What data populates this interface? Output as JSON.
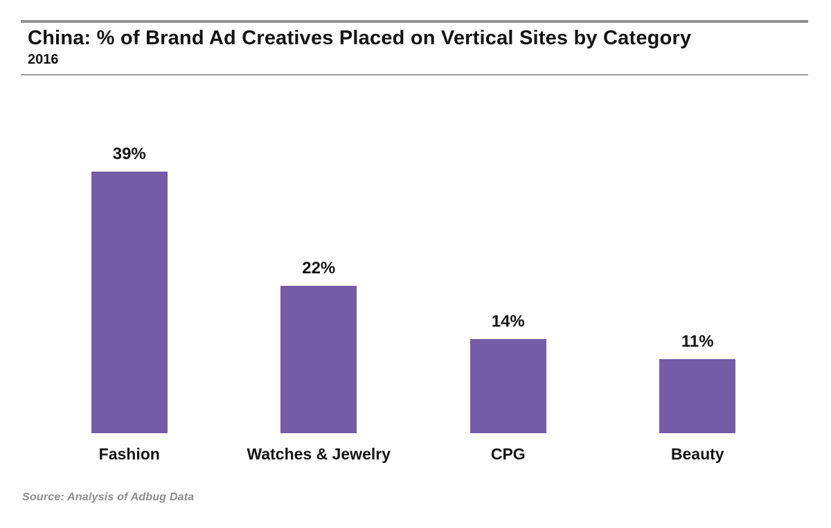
{
  "header": {
    "title": "China: % of Brand Ad Creatives Placed on Vertical Sites by Category",
    "subtitle": "2016"
  },
  "chart_data": {
    "type": "bar",
    "title": "China: % of Brand Ad Creatives Placed on Vertical Sites by Category",
    "subtitle": "2016",
    "categories": [
      "Fashion",
      "Watches & Jewelry",
      "CPG",
      "Beauty"
    ],
    "values": [
      39,
      22,
      14,
      11
    ],
    "value_labels": [
      "39%",
      "22%",
      "14%",
      "11%"
    ],
    "unit": "%",
    "bar_color": "#745ca6",
    "text_color": "#141414",
    "ylim": [
      0,
      44
    ],
    "grid": false,
    "axes_visible": false,
    "legend": null,
    "data_labels_position": "above-bars"
  },
  "footer": {
    "source": "Source: Analysis of Adbug Data"
  }
}
